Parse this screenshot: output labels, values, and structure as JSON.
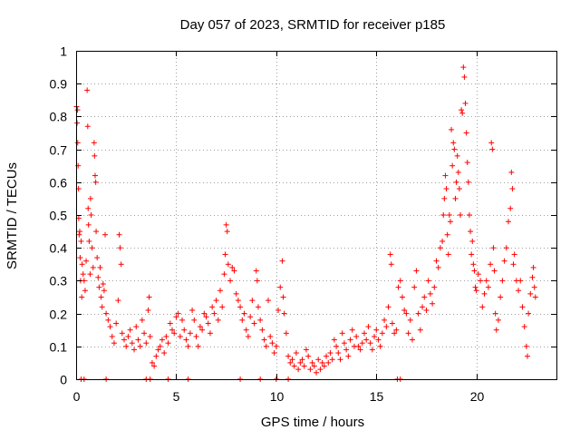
{
  "chart_data": {
    "type": "scatter",
    "title": "Day 057 of 2023, SRMTID for receiver p185",
    "xlabel": "GPS time / hours",
    "ylabel": "SRMTID / TECUs",
    "xlim": [
      0,
      24
    ],
    "ylim": [
      0,
      1
    ],
    "xticks": [
      0,
      5,
      10,
      15,
      20
    ],
    "xtick_labels": [
      "0",
      "5",
      "10",
      "15",
      "20"
    ],
    "yticks": [
      0,
      0.1,
      0.2,
      0.3,
      0.4,
      0.5,
      0.6,
      0.7,
      0.8,
      0.9,
      1
    ],
    "ytick_labels": [
      "0",
      "0.1",
      "0.2",
      "0.3",
      "0.4",
      "0.5",
      "0.6",
      "0.7",
      "0.8",
      "0.9",
      "1"
    ],
    "grid": true,
    "marker": "plus",
    "color": "#ff0000",
    "series": [
      {
        "name": "SRMTID",
        "points": [
          [
            0.02,
            0.83
          ],
          [
            0.05,
            0.78
          ],
          [
            0.07,
            0.82
          ],
          [
            0.08,
            0.72
          ],
          [
            0.1,
            0.65
          ],
          [
            0.12,
            0.58
          ],
          [
            0.13,
            0.49
          ],
          [
            0.15,
            0.44
          ],
          [
            0.18,
            0.45
          ],
          [
            0.2,
            0.37
          ],
          [
            0.22,
            0.3
          ],
          [
            0.25,
            0.42
          ],
          [
            0.28,
            0.25
          ],
          [
            0.3,
            0.35
          ],
          [
            0.35,
            0.32
          ],
          [
            0.4,
            0.3
          ],
          [
            0.45,
            0.27
          ],
          [
            0.5,
            0.36
          ],
          [
            0.55,
            0.88
          ],
          [
            0.58,
            0.77
          ],
          [
            0.6,
            0.52
          ],
          [
            0.62,
            0.47
          ],
          [
            0.65,
            0.42
          ],
          [
            0.7,
            0.32
          ],
          [
            0.72,
            0.55
          ],
          [
            0.75,
            0.5
          ],
          [
            0.8,
            0.4
          ],
          [
            0.85,
            0.34
          ],
          [
            0.9,
            0.72
          ],
          [
            0.92,
            0.68
          ],
          [
            0.95,
            0.62
          ],
          [
            0.98,
            0.6
          ],
          [
            1.0,
            0.45
          ],
          [
            1.05,
            0.37
          ],
          [
            1.1,
            0.31
          ],
          [
            1.15,
            0.28
          ],
          [
            1.2,
            0.34
          ],
          [
            1.25,
            0.25
          ],
          [
            1.3,
            0.22
          ],
          [
            1.35,
            0.29
          ],
          [
            1.4,
            0.27
          ],
          [
            1.45,
            0.44
          ],
          [
            1.5,
            0.2
          ],
          [
            1.6,
            0.18
          ],
          [
            1.7,
            0.16
          ],
          [
            1.8,
            0.13
          ],
          [
            1.9,
            0.11
          ],
          [
            2.0,
            0.17
          ],
          [
            2.1,
            0.24
          ],
          [
            2.15,
            0.44
          ],
          [
            2.2,
            0.4
          ],
          [
            2.25,
            0.35
          ],
          [
            2.3,
            0.14
          ],
          [
            2.4,
            0.12
          ],
          [
            2.5,
            0.1
          ],
          [
            2.6,
            0.13
          ],
          [
            2.7,
            0.15
          ],
          [
            2.8,
            0.11
          ],
          [
            2.9,
            0.09
          ],
          [
            3.0,
            0.16
          ],
          [
            3.1,
            0.12
          ],
          [
            3.2,
            0.1
          ],
          [
            3.3,
            0.18
          ],
          [
            3.4,
            0.14
          ],
          [
            3.5,
            0.11
          ],
          [
            3.6,
            0.21
          ],
          [
            3.65,
            0.25
          ],
          [
            3.7,
            0.13
          ],
          [
            3.8,
            0.05
          ],
          [
            3.9,
            0.04
          ],
          [
            4.0,
            0.07
          ],
          [
            4.1,
            0.09
          ],
          [
            4.2,
            0.1
          ],
          [
            4.3,
            0.12
          ],
          [
            4.4,
            0.08
          ],
          [
            4.5,
            0.13
          ],
          [
            4.6,
            0.11
          ],
          [
            4.7,
            0.17
          ],
          [
            4.8,
            0.15
          ],
          [
            4.9,
            0.14
          ],
          [
            5.0,
            0.19
          ],
          [
            5.1,
            0.2
          ],
          [
            5.2,
            0.13
          ],
          [
            5.3,
            0.18
          ],
          [
            5.4,
            0.15
          ],
          [
            5.5,
            0.12
          ],
          [
            5.6,
            0.1
          ],
          [
            5.7,
            0.14
          ],
          [
            5.8,
            0.21
          ],
          [
            5.9,
            0.18
          ],
          [
            6.0,
            0.13
          ],
          [
            6.1,
            0.1
          ],
          [
            6.2,
            0.16
          ],
          [
            6.3,
            0.15
          ],
          [
            6.4,
            0.2
          ],
          [
            6.5,
            0.19
          ],
          [
            6.6,
            0.17
          ],
          [
            6.7,
            0.14
          ],
          [
            6.8,
            0.22
          ],
          [
            6.9,
            0.2
          ],
          [
            7.0,
            0.24
          ],
          [
            7.1,
            0.18
          ],
          [
            7.2,
            0.27
          ],
          [
            7.3,
            0.22
          ],
          [
            7.4,
            0.32
          ],
          [
            7.45,
            0.38
          ],
          [
            7.5,
            0.47
          ],
          [
            7.55,
            0.45
          ],
          [
            7.6,
            0.35
          ],
          [
            7.7,
            0.3
          ],
          [
            7.8,
            0.34
          ],
          [
            7.9,
            0.33
          ],
          [
            8.0,
            0.26
          ],
          [
            8.1,
            0.24
          ],
          [
            8.2,
            0.22
          ],
          [
            8.3,
            0.18
          ],
          [
            8.4,
            0.2
          ],
          [
            8.5,
            0.15
          ],
          [
            8.6,
            0.13
          ],
          [
            8.7,
            0.19
          ],
          [
            8.8,
            0.24
          ],
          [
            8.9,
            0.17
          ],
          [
            9.0,
            0.33
          ],
          [
            9.05,
            0.3
          ],
          [
            9.1,
            0.22
          ],
          [
            9.2,
            0.18
          ],
          [
            9.3,
            0.15
          ],
          [
            9.4,
            0.12
          ],
          [
            9.5,
            0.1
          ],
          [
            9.6,
            0.24
          ],
          [
            9.7,
            0.13
          ],
          [
            9.8,
            0.11
          ],
          [
            9.9,
            0.08
          ],
          [
            10.0,
            0.1
          ],
          [
            10.1,
            0.21
          ],
          [
            10.2,
            0.28
          ],
          [
            10.3,
            0.36
          ],
          [
            10.35,
            0.25
          ],
          [
            10.4,
            0.2
          ],
          [
            10.5,
            0.14
          ],
          [
            10.6,
            0.07
          ],
          [
            10.7,
            0.05
          ],
          [
            10.8,
            0.06
          ],
          [
            10.9,
            0.04
          ],
          [
            11.0,
            0.08
          ],
          [
            11.1,
            0.03
          ],
          [
            11.2,
            0.05
          ],
          [
            11.3,
            0.06
          ],
          [
            11.4,
            0.04
          ],
          [
            11.5,
            0.09
          ],
          [
            11.6,
            0.07
          ],
          [
            11.7,
            0.03
          ],
          [
            11.8,
            0.05
          ],
          [
            11.9,
            0.04
          ],
          [
            12.0,
            0.02
          ],
          [
            12.1,
            0.06
          ],
          [
            12.2,
            0.03
          ],
          [
            12.3,
            0.05
          ],
          [
            12.4,
            0.04
          ],
          [
            12.5,
            0.07
          ],
          [
            12.6,
            0.05
          ],
          [
            12.7,
            0.08
          ],
          [
            12.8,
            0.06
          ],
          [
            12.9,
            0.12
          ],
          [
            13.0,
            0.1
          ],
          [
            13.1,
            0.08
          ],
          [
            13.2,
            0.06
          ],
          [
            13.3,
            0.14
          ],
          [
            13.4,
            0.11
          ],
          [
            13.5,
            0.09
          ],
          [
            13.6,
            0.07
          ],
          [
            13.7,
            0.12
          ],
          [
            13.8,
            0.15
          ],
          [
            13.9,
            0.1
          ],
          [
            14.0,
            0.13
          ],
          [
            14.1,
            0.1
          ],
          [
            14.2,
            0.09
          ],
          [
            14.3,
            0.11
          ],
          [
            14.4,
            0.14
          ],
          [
            14.5,
            0.12
          ],
          [
            14.6,
            0.16
          ],
          [
            14.7,
            0.11
          ],
          [
            14.8,
            0.09
          ],
          [
            14.9,
            0.13
          ],
          [
            15.0,
            0.15
          ],
          [
            15.1,
            0.12
          ],
          [
            15.2,
            0.1
          ],
          [
            15.3,
            0.14
          ],
          [
            15.4,
            0.18
          ],
          [
            15.5,
            0.16
          ],
          [
            15.6,
            0.22
          ],
          [
            15.7,
            0.38
          ],
          [
            15.75,
            0.35
          ],
          [
            15.8,
            0.17
          ],
          [
            15.9,
            0.14
          ],
          [
            16.0,
            0.15
          ],
          [
            16.1,
            0.28
          ],
          [
            16.2,
            0.3
          ],
          [
            16.3,
            0.25
          ],
          [
            16.4,
            0.21
          ],
          [
            16.5,
            0.2
          ],
          [
            16.6,
            0.14
          ],
          [
            16.7,
            0.18
          ],
          [
            16.8,
            0.12
          ],
          [
            16.9,
            0.28
          ],
          [
            17.0,
            0.33
          ],
          [
            17.1,
            0.2
          ],
          [
            17.2,
            0.15
          ],
          [
            17.3,
            0.22
          ],
          [
            17.4,
            0.25
          ],
          [
            17.5,
            0.21
          ],
          [
            17.6,
            0.3
          ],
          [
            17.7,
            0.26
          ],
          [
            17.8,
            0.23
          ],
          [
            17.9,
            0.28
          ],
          [
            18.0,
            0.36
          ],
          [
            18.1,
            0.34
          ],
          [
            18.2,
            0.4
          ],
          [
            18.3,
            0.42
          ],
          [
            18.35,
            0.5
          ],
          [
            18.4,
            0.55
          ],
          [
            18.45,
            0.62
          ],
          [
            18.5,
            0.58
          ],
          [
            18.55,
            0.44
          ],
          [
            18.6,
            0.38
          ],
          [
            18.65,
            0.5
          ],
          [
            18.7,
            0.48
          ],
          [
            18.75,
            0.76
          ],
          [
            18.8,
            0.65
          ],
          [
            18.85,
            0.72
          ],
          [
            18.9,
            0.7
          ],
          [
            18.95,
            0.55
          ],
          [
            19.0,
            0.6
          ],
          [
            19.05,
            0.68
          ],
          [
            19.1,
            0.63
          ],
          [
            19.15,
            0.58
          ],
          [
            19.2,
            0.5
          ],
          [
            19.25,
            0.82
          ],
          [
            19.3,
            0.81
          ],
          [
            19.35,
            0.95
          ],
          [
            19.4,
            0.92
          ],
          [
            19.45,
            0.84
          ],
          [
            19.5,
            0.75
          ],
          [
            19.55,
            0.66
          ],
          [
            19.6,
            0.6
          ],
          [
            19.65,
            0.5
          ],
          [
            19.7,
            0.45
          ],
          [
            19.75,
            0.38
          ],
          [
            19.8,
            0.42
          ],
          [
            19.85,
            0.35
          ],
          [
            19.9,
            0.33
          ],
          [
            19.95,
            0.28
          ],
          [
            20.0,
            0.27
          ],
          [
            20.1,
            0.32
          ],
          [
            20.2,
            0.3
          ],
          [
            20.3,
            0.22
          ],
          [
            20.4,
            0.26
          ],
          [
            20.5,
            0.3
          ],
          [
            20.6,
            0.28
          ],
          [
            20.7,
            0.35
          ],
          [
            20.75,
            0.72
          ],
          [
            20.8,
            0.7
          ],
          [
            20.85,
            0.4
          ],
          [
            20.9,
            0.33
          ],
          [
            20.95,
            0.2
          ],
          [
            21.0,
            0.15
          ],
          [
            21.1,
            0.18
          ],
          [
            21.2,
            0.25
          ],
          [
            21.3,
            0.3
          ],
          [
            21.4,
            0.36
          ],
          [
            21.5,
            0.4
          ],
          [
            21.6,
            0.48
          ],
          [
            21.7,
            0.52
          ],
          [
            21.75,
            0.63
          ],
          [
            21.8,
            0.58
          ],
          [
            21.85,
            0.35
          ],
          [
            21.9,
            0.38
          ],
          [
            22.0,
            0.3
          ],
          [
            22.1,
            0.27
          ],
          [
            22.2,
            0.3
          ],
          [
            22.3,
            0.22
          ],
          [
            22.4,
            0.16
          ],
          [
            22.5,
            0.1
          ],
          [
            22.55,
            0.07
          ],
          [
            22.6,
            0.2
          ],
          [
            22.7,
            0.26
          ],
          [
            22.8,
            0.31
          ],
          [
            22.85,
            0.34
          ],
          [
            22.9,
            0.28
          ],
          [
            22.95,
            0.25
          ],
          [
            0.25,
            0.0
          ],
          [
            0.4,
            0.0
          ],
          [
            1.5,
            0.0
          ],
          [
            3.5,
            0.0
          ],
          [
            3.7,
            0.0
          ],
          [
            4.6,
            0.0
          ],
          [
            5.6,
            0.0
          ],
          [
            8.2,
            0.0
          ],
          [
            9.2,
            0.0
          ],
          [
            10.0,
            0.0
          ],
          [
            10.6,
            0.0
          ],
          [
            16.05,
            0.0
          ],
          [
            16.2,
            0.0
          ]
        ]
      }
    ]
  }
}
